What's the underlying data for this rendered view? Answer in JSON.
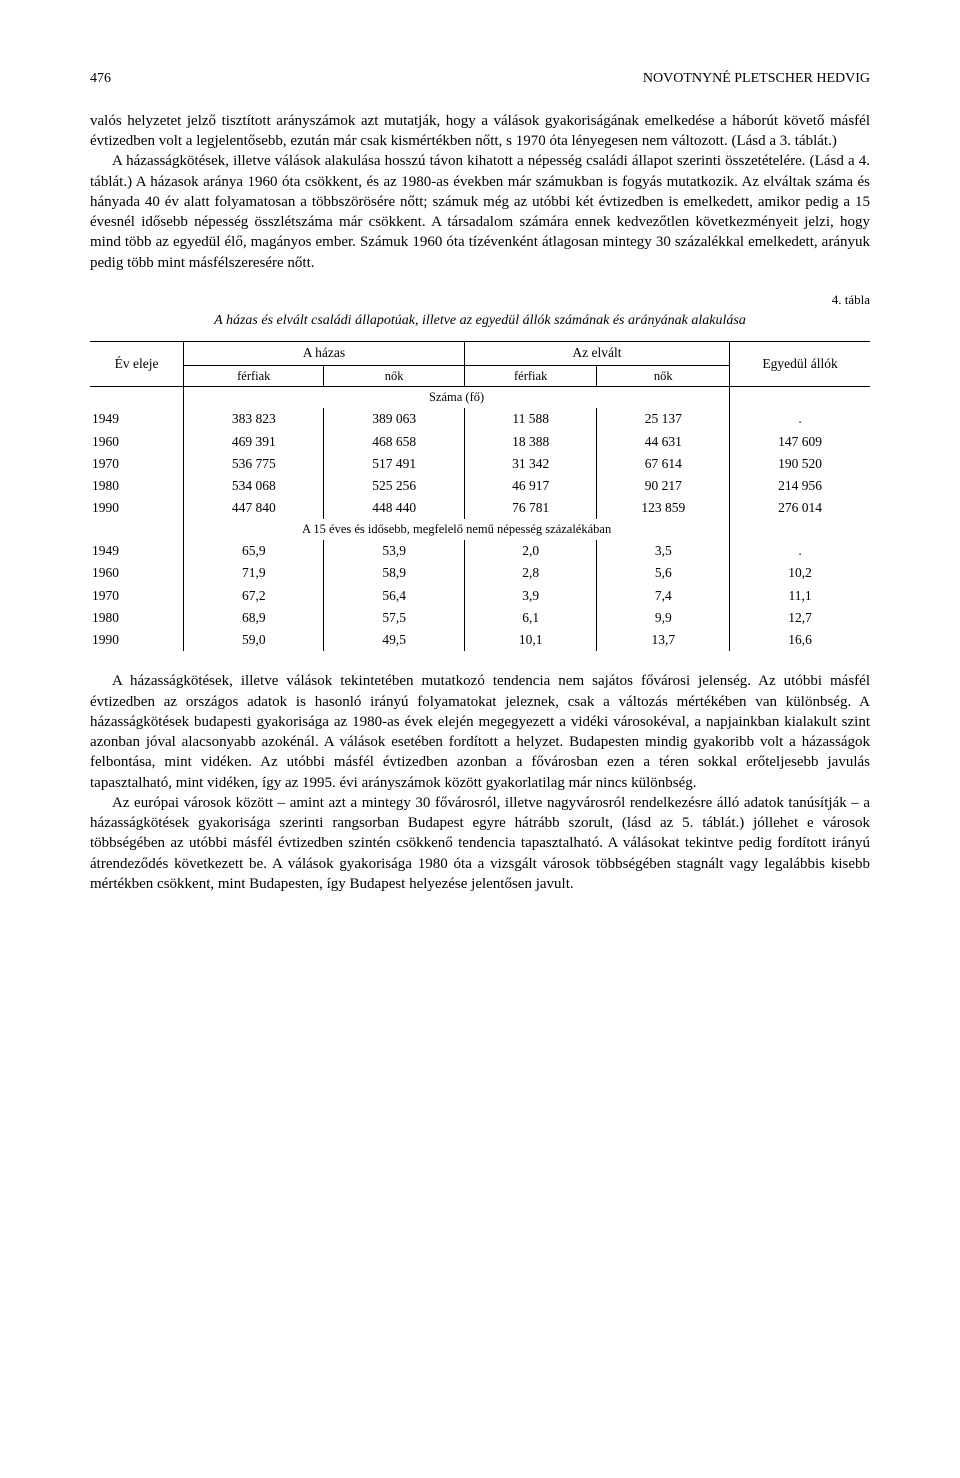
{
  "page_number": "476",
  "running_head": "NOVOTNYNÉ PLETSCHER HEDVIG",
  "para1": "valós helyzetet jelző tisztított arányszámok azt mutatják, hogy a válások gyakoriságának emelkedése a háborút követő másfél évtizedben volt a legjelentősebb, ezután már csak kismértékben nőtt, s 1970 óta lényegesen nem változott. (Lásd a 3. táblát.)",
  "para2": "A házasságkötések, illetve válások alakulása hosszú távon kihatott a népesség családi állapot szerinti összetételére. (Lásd a 4. táblát.) A házasok aránya 1960 óta csökkent, és az 1980-as években már számukban is fogyás mutatkozik. Az elváltak száma és hányada 40 év alatt folyamatosan a többszörösére nőtt; számuk még az utóbbi két évtizedben is emelkedett, amikor pedig a 15 évesnél idősebb népesség összlétszáma már csökkent. A társadalom számára ennek kedvezőtlen következményeit jelzi, hogy mind több az egyedül élő, magányos ember. Számuk 1960 óta tízévenként átlagosan mintegy 30 százalékkal emelkedett, arányuk pedig több mint másfélszeresére nőtt.",
  "table_label": "4. tábla",
  "table_caption": "A házas és elvált családi állapotúak, illetve az egyedül állók számának és arányának alakulása",
  "table": {
    "col_year": "Év eleje",
    "col_married": "A házas",
    "col_divorced": "Az elvált",
    "col_single": "Egyedül állók",
    "sub_men": "férfiak",
    "sub_women": "nők",
    "section1": "Száma (fő)",
    "section2": "A 15 éves és idősebb, megfelelő nemű népesség százalékában",
    "rows_abs": [
      {
        "y": "1949",
        "hm": "383 823",
        "hw": "389 063",
        "dm": "11 588",
        "dw": "25 137",
        "s": "."
      },
      {
        "y": "1960",
        "hm": "469 391",
        "hw": "468 658",
        "dm": "18 388",
        "dw": "44 631",
        "s": "147 609"
      },
      {
        "y": "1970",
        "hm": "536 775",
        "hw": "517 491",
        "dm": "31 342",
        "dw": "67 614",
        "s": "190 520"
      },
      {
        "y": "1980",
        "hm": "534 068",
        "hw": "525 256",
        "dm": "46 917",
        "dw": "90 217",
        "s": "214 956"
      },
      {
        "y": "1990",
        "hm": "447 840",
        "hw": "448 440",
        "dm": "76 781",
        "dw": "123 859",
        "s": "276 014"
      }
    ],
    "rows_pct": [
      {
        "y": "1949",
        "hm": "65,9",
        "hw": "53,9",
        "dm": "2,0",
        "dw": "3,5",
        "s": "."
      },
      {
        "y": "1960",
        "hm": "71,9",
        "hw": "58,9",
        "dm": "2,8",
        "dw": "5,6",
        "s": "10,2"
      },
      {
        "y": "1970",
        "hm": "67,2",
        "hw": "56,4",
        "dm": "3,9",
        "dw": "7,4",
        "s": "11,1"
      },
      {
        "y": "1980",
        "hm": "68,9",
        "hw": "57,5",
        "dm": "6,1",
        "dw": "9,9",
        "s": "12,7"
      },
      {
        "y": "1990",
        "hm": "59,0",
        "hw": "49,5",
        "dm": "10,1",
        "dw": "13,7",
        "s": "16,6"
      }
    ]
  },
  "para3": "A házasságkötések, illetve válások tekintetében mutatkozó tendencia nem sajátos fővárosi jelenség. Az utóbbi másfél évtizedben az országos adatok is hasonló irányú folyamatokat jeleznek, csak a változás mértékében van különbség. A házasságkötések budapesti gyakorisága az 1980-as évek elején megegyezett a vidéki városokéval, a napjainkban kialakult szint azonban jóval alacsonyabb azokénál. A válások esetében fordított a helyzet. Budapesten mindig gyakoribb volt a házasságok felbontása, mint vidéken. Az utóbbi másfél évtizedben azonban a fővárosban ezen a téren sokkal erőteljesebb javulás tapasztalható, mint vidéken, így az 1995. évi arányszámok között gyakorlatilag már nincs különbség.",
  "para4": "Az európai városok között – amint azt a mintegy 30 fővárosról, illetve nagyvárosról rendelkezésre álló adatok tanúsítják – a házasságkötések gyakorisága szerinti rangsorban Budapest egyre hátrább szorult, (lásd az 5. táblát.) jóllehet e városok többségében az utóbbi másfél évtizedben szintén csökkenő tendencia tapasztalható. A válásokat tekintve pedig fordított irányú átrendeződés következett be. A válások gyakorisága 1980 óta a vizsgált városok többségében stagnált vagy legalábbis kisebb mértékben csökkent, mint Budapesten, így Budapest helyezése jelentősen javult."
}
